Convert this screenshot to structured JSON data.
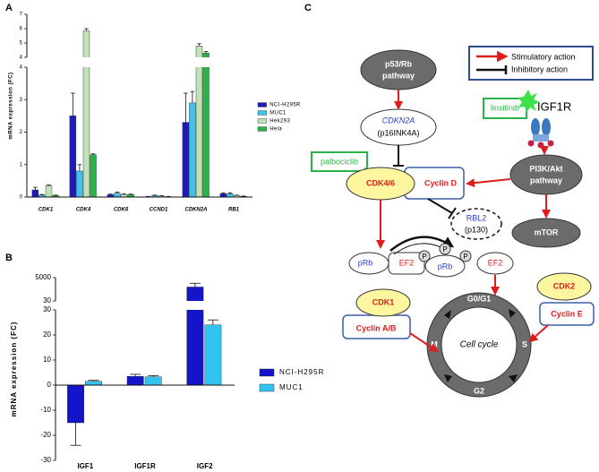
{
  "chart_data": [
    {
      "type": "bar",
      "panel": "A",
      "ylabel": "mRNA expression (FC)",
      "categories": [
        "CDK1",
        "CDK4",
        "CDK6",
        "CCND1",
        "CDKN2A",
        "RB1"
      ],
      "series": [
        {
          "name": "NCI-H295R",
          "color": "#1c1cb4",
          "values": [
            0.22,
            2.5,
            0.07,
            0.01,
            2.3,
            0.1
          ],
          "errors": [
            0.08,
            0.7,
            0.02,
            0.01,
            0.9,
            0.03
          ]
        },
        {
          "name": "MUC1",
          "color": "#3ec2ee",
          "values": [
            0.06,
            0.8,
            0.12,
            0.05,
            2.9,
            0.1
          ],
          "errors": [
            0.02,
            0.2,
            0.03,
            0.01,
            0.35,
            0.03
          ]
        },
        {
          "name": "Hek293",
          "color": "#bfe3b4",
          "values": [
            0.35,
            5.85,
            0.08,
            0.03,
            4.8,
            0.05
          ],
          "errors": [
            0.02,
            0.15,
            0.02,
            0.01,
            0.15,
            0.01
          ]
        },
        {
          "name": "Hela",
          "color": "#2bb34a",
          "values": [
            0.05,
            1.3,
            0.08,
            0.01,
            4.3,
            0.02
          ],
          "errors": [
            0.01,
            0.03,
            0.01,
            0.01,
            0.1,
            0.01
          ]
        }
      ],
      "y_segments": [
        {
          "ylim": [
            0,
            4
          ],
          "yticks": [
            0,
            1,
            2,
            3,
            4
          ]
        },
        {
          "ylim": [
            4,
            7
          ],
          "yticks": [
            4,
            5,
            6,
            7
          ]
        }
      ]
    },
    {
      "type": "bar",
      "panel": "B",
      "ylabel": "mRNA expression (FC)",
      "categories": [
        "IGF1",
        "IGF1R",
        "IGF2"
      ],
      "series": [
        {
          "name": "NCI-H295R",
          "color": "#1414c8",
          "values": [
            -15,
            3.5,
            3000
          ],
          "errors": [
            9,
            0.8,
            800
          ]
        },
        {
          "name": "MUC1",
          "color": "#33c3f0",
          "values": [
            1.5,
            3.3,
            24
          ],
          "errors": [
            0.4,
            0.5,
            2
          ]
        }
      ],
      "y_segments": [
        {
          "ylim": [
            -30,
            30
          ],
          "yticks": [
            -30,
            -20,
            -10,
            0,
            10,
            20,
            30
          ]
        },
        {
          "ylim": [
            30,
            5000
          ],
          "yticks": [
            30,
            5000
          ]
        }
      ]
    }
  ],
  "diagram": {
    "panel": "C",
    "legend": {
      "stimulatory": "Stimulatory action",
      "inhibitory": "Inhibitory action"
    },
    "p53": [
      "p53/Rb",
      "pathway"
    ],
    "cdkn2a": [
      "CDKN2A",
      "(p16INK4A)"
    ],
    "linsitinib": "linsitinib",
    "igf1r": "IGF1R",
    "palbociclib": "palbociclib",
    "cdk46": "CDK4/6",
    "cyclin_d": "Cyclin D",
    "pi3k": [
      "PI3K/Akt",
      "pathway"
    ],
    "rbl2": [
      "RBL2",
      "(p130)"
    ],
    "mtor": "mTOR",
    "prb": "pRb",
    "ef2": "EF2",
    "phospho": "P",
    "prb2": "pRb",
    "ef2_free": "EF2",
    "cdk1": "CDK1",
    "cyclin_ab": "Cyclin A/B",
    "cdk2": "CDK2",
    "cyclin_e": "Cyclin E",
    "cell_cycle": "Cell cycle",
    "phases": {
      "g0g1": "G0/G1",
      "s": "S",
      "g2": "G2",
      "m": "M"
    }
  }
}
